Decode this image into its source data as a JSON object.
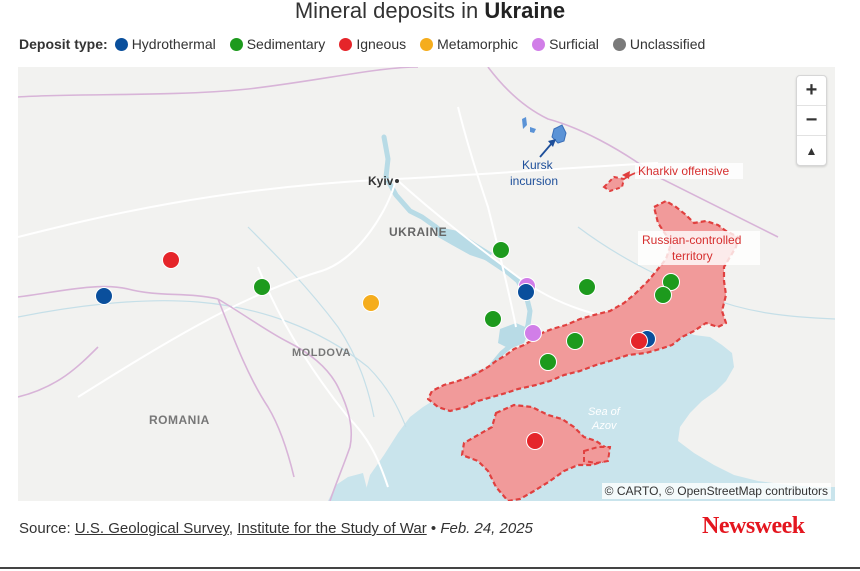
{
  "title": {
    "prefix": "Mineral deposits in ",
    "bold": "Ukraine"
  },
  "legend": {
    "title": "Deposit type:",
    "items": [
      {
        "label": "Hydrothermal",
        "color": "#0a4f9c"
      },
      {
        "label": "Sedimentary",
        "color": "#1d9a1d"
      },
      {
        "label": "Igneous",
        "color": "#e5252a"
      },
      {
        "label": "Metamorphic",
        "color": "#f5ad1d"
      },
      {
        "label": "Surficial",
        "color": "#d17ee8"
      },
      {
        "label": "Unclassified",
        "color": "#7a7a7a"
      }
    ]
  },
  "map": {
    "labels": {
      "kyiv": "Kyiv",
      "ukraine": "UKRAINE",
      "moldova": "MOLDOVA",
      "romania": "ROMANIA",
      "sea_line1": "Sea of",
      "sea_line2": "Azov"
    },
    "annotations": {
      "kursk_line1": "Kursk",
      "kursk_line2": "incursion",
      "kharkiv": "Kharkiv offensive",
      "russian_line1": "Russian-controlled",
      "russian_line2": "territory"
    },
    "colors": {
      "occupied": "#f19a9a",
      "occupied_border": "#e0403f",
      "water": "#c9e4ec",
      "kursk": "#5b93d6"
    }
  },
  "zoom": {
    "in": "+",
    "out": "−",
    "compass": "▲"
  },
  "attribution": "© CARTO, © OpenStreetMap contributors",
  "footer": {
    "source_label": "Source: ",
    "link1": "U.S. Geological Survey",
    "sep": ", ",
    "link2": "Institute for the Study of War",
    "bullet": " • ",
    "date": "Feb. 24, 2025"
  },
  "brand": "Newsweek"
}
